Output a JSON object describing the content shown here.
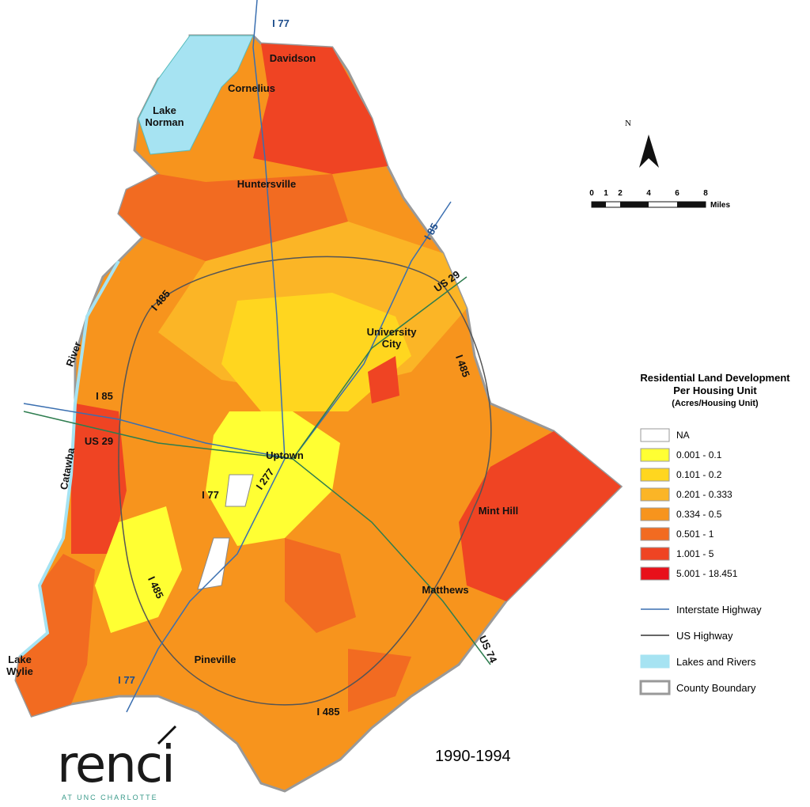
{
  "map": {
    "period": "1990-1994",
    "place_labels": [
      {
        "text": "I 77",
        "kind": "interstate"
      },
      {
        "text": "Davidson",
        "kind": "town"
      },
      {
        "text": "Cornelius",
        "kind": "town"
      },
      {
        "text": "Lake Norman",
        "kind": "town"
      },
      {
        "text": "Huntersville",
        "kind": "town"
      },
      {
        "text": "I 85",
        "kind": "interstate"
      },
      {
        "text": "US 29",
        "kind": "town"
      },
      {
        "text": "I 485",
        "kind": "town"
      },
      {
        "text": "River",
        "kind": "town"
      },
      {
        "text": "University City",
        "kind": "town"
      },
      {
        "text": "I 485",
        "kind": "town"
      },
      {
        "text": "I 85",
        "kind": "town"
      },
      {
        "text": "US 29",
        "kind": "town"
      },
      {
        "text": "Catawba",
        "kind": "town"
      },
      {
        "text": "Uptown",
        "kind": "town"
      },
      {
        "text": "I 277",
        "kind": "town"
      },
      {
        "text": "I 77",
        "kind": "town"
      },
      {
        "text": "Mint Hill",
        "kind": "town"
      },
      {
        "text": "I 485",
        "kind": "town"
      },
      {
        "text": "Matthews",
        "kind": "town"
      },
      {
        "text": "US 74",
        "kind": "town"
      },
      {
        "text": "Lake Wylie",
        "kind": "town"
      },
      {
        "text": "I 77",
        "kind": "interstate"
      },
      {
        "text": "Pineville",
        "kind": "town"
      },
      {
        "text": "I 485",
        "kind": "town"
      }
    ],
    "north": "N",
    "scale_bar": {
      "ticks": [
        0,
        1,
        2,
        4,
        6,
        8
      ],
      "unit": "Miles"
    },
    "legend": {
      "title": [
        "Residential Land Development",
        "Per Housing Unit",
        "(Acres/Housing Unit)"
      ],
      "classes": [
        {
          "label": "NA",
          "color": "#ffffff"
        },
        {
          "label": "0.001 - 0.1",
          "color": "#ffff33"
        },
        {
          "label": "0.101 - 0.2",
          "color": "#ffd61f"
        },
        {
          "label": "0.201 - 0.333",
          "color": "#fbb526"
        },
        {
          "label": "0.334 - 0.5",
          "color": "#f7941d"
        },
        {
          "label": "0.501 - 1",
          "color": "#f26b21"
        },
        {
          "label": "1.001 - 5",
          "color": "#ef4423"
        },
        {
          "label": "5.001 - 18.451",
          "color": "#e8101a"
        }
      ],
      "features": [
        {
          "label": "Interstate Highway",
          "color": "#3a6fb0"
        },
        {
          "label": "US Highway",
          "color": "#333333"
        },
        {
          "label": "Lakes and Rivers",
          "color": "#a6e3f2"
        },
        {
          "label": "County Boundary",
          "color": "#999999"
        }
      ]
    },
    "logo": {
      "name": "renci",
      "tagline": "AT UNC CHARLOTTE"
    }
  }
}
